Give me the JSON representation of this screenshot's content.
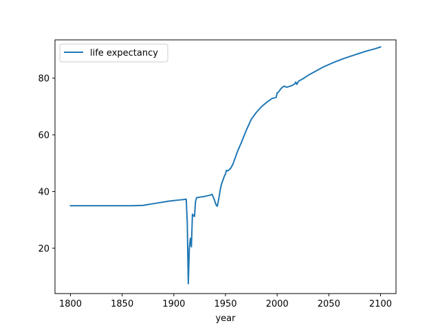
{
  "chart_data": {
    "type": "line",
    "xlabel": "year",
    "ylabel": "",
    "xlim": [
      1785,
      2115
    ],
    "ylim": [
      4,
      93.5
    ],
    "x_ticks": [
      1800,
      1850,
      1900,
      1950,
      2000,
      2050,
      2100
    ],
    "y_ticks": [
      20,
      40,
      60,
      80
    ],
    "legend_position": "upper-left",
    "grid": false,
    "series": [
      {
        "name": "life expectancy",
        "color": "#1f77b4",
        "x": [
          1800,
          1820,
          1840,
          1860,
          1870,
          1875,
          1880,
          1885,
          1890,
          1895,
          1900,
          1905,
          1910,
          1912,
          1913,
          1914,
          1915,
          1916,
          1917,
          1918,
          1919,
          1920,
          1921,
          1922,
          1923,
          1925,
          1930,
          1935,
          1937,
          1938,
          1939,
          1940,
          1941,
          1942,
          1943,
          1944,
          1945,
          1946,
          1947,
          1948,
          1949,
          1950,
          1951,
          1952,
          1953,
          1955,
          1957,
          1960,
          1962,
          1965,
          1970,
          1975,
          1978,
          1980,
          1985,
          1990,
          1995,
          1999,
          2000,
          2001,
          2002,
          2003,
          2005,
          2007,
          2009,
          2011,
          2013,
          2015,
          2017,
          2018,
          2019,
          2020,
          2021,
          2025,
          2030,
          2035,
          2040,
          2045,
          2050,
          2055,
          2060,
          2065,
          2070,
          2075,
          2080,
          2085,
          2090,
          2095,
          2100
        ],
        "y": [
          35,
          35,
          35,
          35,
          35.1,
          35.4,
          35.7,
          36,
          36.3,
          36.6,
          36.8,
          37,
          37.2,
          37.3,
          29,
          7.5,
          20,
          23.5,
          20.5,
          32,
          31.5,
          31.2,
          36.5,
          37.8,
          37.9,
          38,
          38.3,
          38.7,
          39,
          38.2,
          37.3,
          36.2,
          35.2,
          34.8,
          36.5,
          38.5,
          40.8,
          42.5,
          43.5,
          44.5,
          45.5,
          46.2,
          47.5,
          47.3,
          47.5,
          48.2,
          49.5,
          52.5,
          54.5,
          57,
          61.5,
          65.5,
          67,
          68,
          70,
          71.5,
          72.8,
          73.2,
          74.8,
          75,
          75.4,
          76,
          76.8,
          77.2,
          76.8,
          77,
          77.2,
          77.5,
          78,
          78.6,
          77.8,
          78.5,
          79,
          79.8,
          81,
          82,
          83,
          84,
          84.8,
          85.6,
          86.3,
          87,
          87.6,
          88.2,
          88.8,
          89.4,
          89.9,
          90.4,
          91
        ]
      }
    ]
  }
}
